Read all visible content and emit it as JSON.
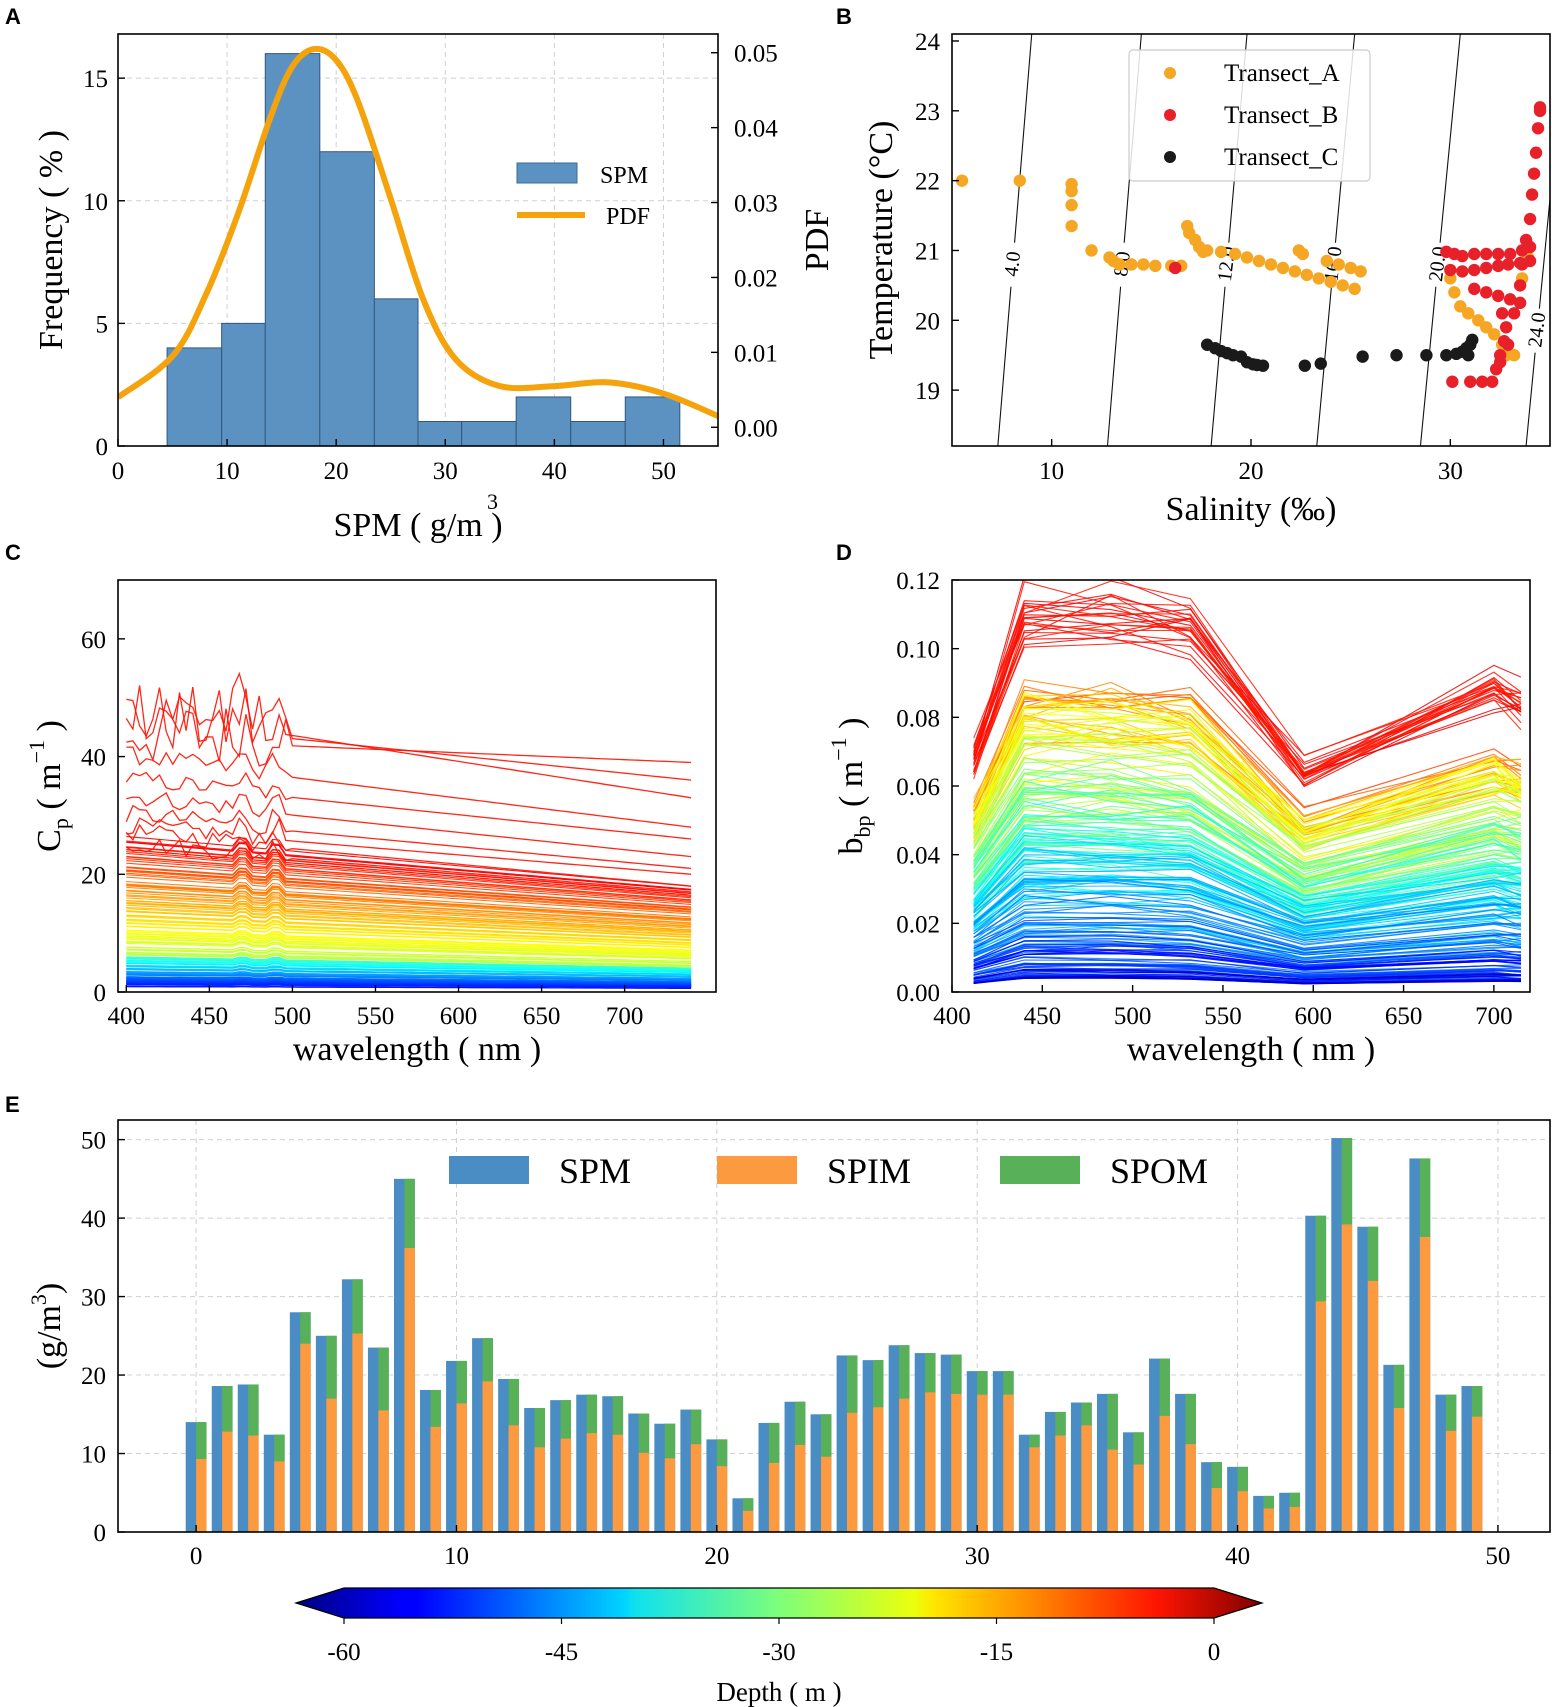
{
  "chart_data": [
    {
      "panel": "A",
      "type": "bar",
      "title": "",
      "xlabel": "SPM ( g/m3 )",
      "xlabel_unit_superscript": "3",
      "ylabel": "Frequency ( % )",
      "ylabel_right": "PDF",
      "xlim": [
        0,
        55
      ],
      "ylim": [
        0,
        16.8
      ],
      "ylim_right": [
        -0.0025,
        0.0525
      ],
      "xticks": [
        "0",
        "10",
        "20",
        "30",
        "40",
        "50"
      ],
      "yticks": [
        "0",
        "5",
        "10",
        "15"
      ],
      "yticks_right": [
        "0.00",
        "0.01",
        "0.02",
        "0.03",
        "0.04",
        "0.05"
      ],
      "bins": [
        [
          4.5,
          9.5
        ],
        [
          9.5,
          13.5
        ],
        [
          13.5,
          18.5
        ],
        [
          18.5,
          23.5
        ],
        [
          23.5,
          27.5
        ],
        [
          27.5,
          31.5
        ],
        [
          31.5,
          36.5
        ],
        [
          36.5,
          41.5
        ],
        [
          41.5,
          46.5
        ],
        [
          46.5,
          51.5
        ]
      ],
      "values": [
        4,
        5,
        16,
        12,
        6,
        1,
        1,
        2,
        1,
        2
      ],
      "pdf_x": [
        0,
        5,
        8,
        11,
        14,
        16,
        18,
        20,
        22,
        25,
        28,
        31,
        35,
        40,
        45,
        50,
        55
      ],
      "pdf_y": [
        0.004,
        0.0095,
        0.0175,
        0.0285,
        0.0415,
        0.0482,
        0.0505,
        0.049,
        0.0435,
        0.0305,
        0.017,
        0.009,
        0.0055,
        0.0055,
        0.006,
        0.0045,
        0.0015
      ],
      "legend": [
        "SPM",
        "PDF"
      ],
      "colors": {
        "bar": "#5b92c2",
        "pdf": "#f5a30c"
      }
    },
    {
      "panel": "B",
      "type": "scatter",
      "xlabel": "Salinity (‰)",
      "ylabel": "Temperature (°C)",
      "xlim": [
        5,
        35
      ],
      "ylim": [
        18.2,
        24.1
      ],
      "xticks": [
        "10",
        "20",
        "30"
      ],
      "yticks": [
        "19",
        "20",
        "21",
        "22",
        "23",
        "24"
      ],
      "contour_labels": [
        "4.0",
        "8.0",
        "12.0",
        "16.0",
        "20.0",
        "24.0"
      ],
      "contour_lines": [
        {
          "label": "4.0",
          "bottom_x": 7.3,
          "top_x": 9.0
        },
        {
          "label": "8.0",
          "bottom_x": 12.8,
          "top_x": 14.5
        },
        {
          "label": "12.0",
          "bottom_x": 18.0,
          "top_x": 19.8
        },
        {
          "label": "16.0",
          "bottom_x": 23.3,
          "top_x": 25.2
        },
        {
          "label": "20.0",
          "bottom_x": 28.5,
          "top_x": 30.5
        },
        {
          "label": "24.0",
          "bottom_x": 33.8,
          "top_x": 35.8
        }
      ],
      "series": [
        {
          "name": "Transect_A",
          "color": "#f5a623",
          "points": [
            [
              5.5,
              22.0
            ],
            [
              8.4,
              22.0
            ],
            [
              11.0,
              21.95
            ],
            [
              11.0,
              21.85
            ],
            [
              11.0,
              21.65
            ],
            [
              11.0,
              21.35
            ],
            [
              12.0,
              21.0
            ],
            [
              12.9,
              20.9
            ],
            [
              13.1,
              20.85
            ],
            [
              13.4,
              20.8
            ],
            [
              14.0,
              20.8
            ],
            [
              14.6,
              20.8
            ],
            [
              15.2,
              20.78
            ],
            [
              16.0,
              20.78
            ],
            [
              16.5,
              20.78
            ],
            [
              16.8,
              21.35
            ],
            [
              16.9,
              21.25
            ],
            [
              17.2,
              21.15
            ],
            [
              17.4,
              21.05
            ],
            [
              17.6,
              20.98
            ],
            [
              17.8,
              21.0
            ],
            [
              18.5,
              20.98
            ],
            [
              19.2,
              20.95
            ],
            [
              19.8,
              20.9
            ],
            [
              20.4,
              20.85
            ],
            [
              21.0,
              20.8
            ],
            [
              21.6,
              20.75
            ],
            [
              22.2,
              20.7
            ],
            [
              22.4,
              21.0
            ],
            [
              22.6,
              20.95
            ],
            [
              22.8,
              20.65
            ],
            [
              23.4,
              20.6
            ],
            [
              24.0,
              20.55
            ],
            [
              24.6,
              20.5
            ],
            [
              25.2,
              20.45
            ],
            [
              23.8,
              20.85
            ],
            [
              24.4,
              20.8
            ],
            [
              25.0,
              20.75
            ],
            [
              25.5,
              20.7
            ],
            [
              30.0,
              20.6
            ],
            [
              30.2,
              20.4
            ],
            [
              30.5,
              20.2
            ],
            [
              30.9,
              20.1
            ],
            [
              31.4,
              20.0
            ],
            [
              31.8,
              19.9
            ],
            [
              32.2,
              19.8
            ],
            [
              32.6,
              19.65
            ],
            [
              32.8,
              19.5
            ],
            [
              33.2,
              19.5
            ],
            [
              33.6,
              20.6
            ],
            [
              33.9,
              20.9
            ]
          ]
        },
        {
          "name": "Transect_B",
          "color": "#e8202a",
          "points": [
            [
              16.2,
              20.75
            ],
            [
              29.8,
              20.98
            ],
            [
              30.2,
              20.95
            ],
            [
              30.6,
              20.92
            ],
            [
              31.2,
              20.95
            ],
            [
              31.8,
              20.95
            ],
            [
              32.4,
              20.95
            ],
            [
              33.0,
              20.95
            ],
            [
              33.6,
              21.0
            ],
            [
              34.0,
              21.05
            ],
            [
              30.0,
              20.72
            ],
            [
              30.6,
              20.7
            ],
            [
              31.2,
              20.72
            ],
            [
              31.8,
              20.75
            ],
            [
              32.4,
              20.78
            ],
            [
              32.9,
              20.8
            ],
            [
              33.5,
              20.82
            ],
            [
              34.0,
              20.85
            ],
            [
              31.2,
              20.45
            ],
            [
              31.8,
              20.4
            ],
            [
              32.4,
              20.35
            ],
            [
              33.0,
              20.3
            ],
            [
              33.5,
              20.25
            ],
            [
              32.6,
              20.1
            ],
            [
              32.8,
              19.9
            ],
            [
              32.7,
              19.7
            ],
            [
              32.5,
              19.5
            ],
            [
              32.3,
              19.3
            ],
            [
              32.1,
              19.12
            ],
            [
              31.6,
              19.12
            ],
            [
              31.0,
              19.12
            ],
            [
              30.1,
              19.12
            ],
            [
              32.5,
              19.4
            ],
            [
              32.9,
              19.65
            ],
            [
              33.2,
              20.1
            ],
            [
              33.5,
              20.5
            ],
            [
              33.6,
              20.8
            ],
            [
              33.8,
              21.15
            ],
            [
              34.0,
              21.45
            ],
            [
              34.1,
              21.8
            ],
            [
              34.2,
              22.1
            ],
            [
              34.3,
              22.4
            ],
            [
              34.4,
              22.75
            ],
            [
              34.5,
              23.0
            ],
            [
              34.5,
              23.05
            ]
          ]
        },
        {
          "name": "Transect_C",
          "color": "#1a1a1a",
          "points": [
            [
              17.8,
              19.65
            ],
            [
              18.2,
              19.6
            ],
            [
              18.5,
              19.56
            ],
            [
              18.8,
              19.53
            ],
            [
              19.1,
              19.5
            ],
            [
              19.5,
              19.48
            ],
            [
              19.8,
              19.4
            ],
            [
              20.1,
              19.37
            ],
            [
              20.3,
              19.36
            ],
            [
              20.6,
              19.35
            ],
            [
              22.7,
              19.35
            ],
            [
              23.5,
              19.38
            ],
            [
              25.6,
              19.48
            ],
            [
              27.3,
              19.5
            ],
            [
              28.8,
              19.5
            ],
            [
              29.8,
              19.5
            ],
            [
              30.3,
              19.52
            ],
            [
              30.6,
              19.55
            ],
            [
              30.8,
              19.6
            ],
            [
              31.0,
              19.65
            ],
            [
              31.1,
              19.72
            ],
            [
              30.9,
              19.5
            ]
          ]
        }
      ]
    },
    {
      "panel": "C",
      "type": "line",
      "xlabel": "wavelength ( nm )",
      "ylabel": "Cp ( m-1 )",
      "xlim": [
        395,
        755
      ],
      "ylim": [
        0,
        70
      ],
      "xticks": [
        "400",
        "450",
        "500",
        "550",
        "600",
        "650",
        "700"
      ],
      "yticks": [
        "0",
        "20",
        "40",
        "60"
      ],
      "series_count": 140,
      "colormap": "jet, colored by depth",
      "top_spectra_at_400nm": [
        43,
        46,
        48,
        40,
        36,
        33,
        30,
        28,
        27,
        25
      ],
      "top_spectra_at_740nm": [
        39,
        36,
        33,
        28,
        26,
        23,
        21,
        20,
        18,
        17
      ]
    },
    {
      "panel": "D",
      "type": "line",
      "xlabel": "wavelength ( nm )",
      "ylabel": "bbp ( m-1 )",
      "xlim": [
        400,
        720
      ],
      "ylim": [
        0,
        0.12
      ],
      "xticks": [
        "400",
        "450",
        "500",
        "550",
        "600",
        "650",
        "700"
      ],
      "yticks": [
        "0.00",
        "0.02",
        "0.04",
        "0.06",
        "0.08",
        "0.10",
        "0.12"
      ],
      "wavelengths": [
        412,
        440,
        488,
        532,
        595,
        700,
        715
      ],
      "series_count": 260,
      "colormap": "jet, colored by depth"
    },
    {
      "panel": "E",
      "type": "bar",
      "xlabel": "",
      "ylabel": "(g/m3)",
      "xlim": [
        -3,
        52
      ],
      "ylim": [
        0,
        52.5
      ],
      "xticks": [
        "0",
        "10",
        "20",
        "30",
        "40",
        "50"
      ],
      "yticks": [
        "0",
        "10",
        "20",
        "30",
        "40",
        "50"
      ],
      "legend": [
        "SPM",
        "SPIM",
        "SPOM"
      ],
      "colors": {
        "SPM": "#4a8dc4",
        "SPIM": "#fc9a3f",
        "SPOM": "#58b158"
      },
      "x": [
        0,
        1,
        2,
        3,
        4,
        5,
        6,
        7,
        8,
        9,
        10,
        11,
        12,
        13,
        14,
        15,
        16,
        17,
        18,
        19,
        20,
        21,
        22,
        23,
        24,
        25,
        26,
        27,
        28,
        29,
        30,
        31,
        32,
        33,
        34,
        35,
        36,
        37,
        38,
        39,
        40,
        41,
        42,
        43,
        44,
        45,
        46,
        47,
        48,
        49
      ],
      "spm": [
        14.0,
        18.6,
        18.8,
        12.4,
        28.0,
        25.0,
        32.2,
        23.5,
        45.0,
        18.1,
        21.8,
        24.7,
        19.5,
        15.8,
        16.8,
        17.5,
        17.3,
        15.1,
        13.8,
        15.6,
        11.8,
        4.3,
        13.9,
        16.6,
        15.0,
        22.5,
        21.9,
        23.8,
        22.8,
        22.6,
        20.5,
        20.5,
        12.4,
        15.3,
        16.5,
        17.6,
        12.7,
        22.1,
        17.6,
        8.9,
        8.3,
        4.6,
        5.0,
        40.3,
        50.2,
        38.9,
        21.3,
        47.6,
        17.5,
        18.6
      ],
      "spim": [
        9.3,
        12.8,
        12.3,
        9.0,
        24.0,
        17.0,
        25.3,
        15.5,
        36.2,
        13.4,
        16.4,
        19.2,
        13.6,
        10.8,
        11.9,
        12.6,
        12.4,
        10.1,
        9.4,
        11.2,
        8.4,
        2.7,
        8.8,
        11.1,
        9.6,
        15.2,
        15.9,
        17.0,
        17.8,
        17.6,
        17.5,
        17.5,
        10.8,
        12.3,
        13.6,
        10.5,
        8.6,
        14.8,
        11.2,
        5.6,
        5.2,
        3.0,
        3.2,
        29.4,
        39.2,
        32.0,
        15.8,
        37.6,
        12.9,
        14.7
      ],
      "colorbar": {
        "label": "Depth ( m )",
        "ticks": [
          "-60",
          "-45",
          "-30",
          "-15",
          "0"
        ],
        "range": [
          -60,
          0
        ],
        "colormap": "jet"
      }
    }
  ],
  "panel_labels": {
    "a": "A",
    "b": "B",
    "c": "C",
    "d": "D",
    "e": "E"
  }
}
